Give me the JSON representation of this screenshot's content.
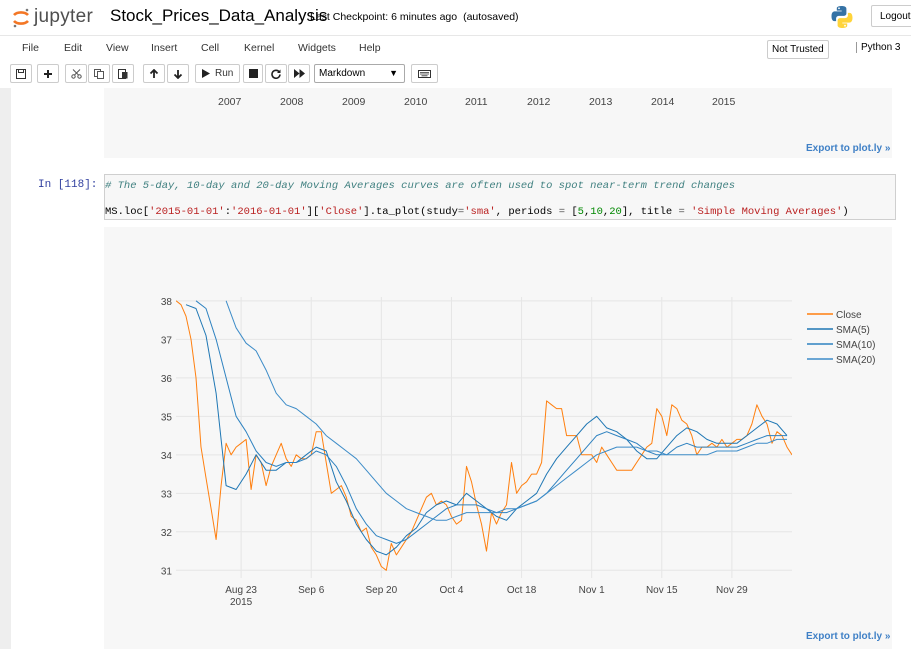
{
  "header": {
    "brand": "jupyter",
    "notebook_name": "Stock_Prices_Data_Analysis",
    "checkpoint": "Last Checkpoint: 6 minutes ago",
    "autosave": "(autosaved)",
    "logout": "Logout"
  },
  "menu": [
    "File",
    "Edit",
    "View",
    "Insert",
    "Cell",
    "Kernel",
    "Widgets",
    "Help"
  ],
  "trusted": "Not Trusted",
  "kernel": "Python 3",
  "toolbar": {
    "run_label": "Run",
    "cell_type": "Markdown"
  },
  "prev_output": {
    "years": [
      "2007",
      "2008",
      "2009",
      "2010",
      "2011",
      "2012",
      "2013",
      "2014",
      "2015"
    ],
    "export": "Export to plot.ly »"
  },
  "cell": {
    "prompt": "In [118]:",
    "comment": "# The 5-day, 10-day and 20-day Moving Averages curves are often used to spot near-term trend changes",
    "code": {
      "a": "MS.loc[",
      "s1": "'2015-01-01'",
      "b": ":",
      "s2": "'2016-01-01'",
      "c": "][",
      "s3": "'Close'",
      "d": "].ta_plot(study",
      "e": "=",
      "s4": "'sma'",
      "f": ", periods ",
      "g": "=",
      "h": " [",
      "n1": "5",
      "i": ",",
      "n2": "10",
      "j": ",",
      "n3": "20",
      "k": "], title ",
      "l": "=",
      "m": " ",
      "s5": "'Simple Moving Averages'",
      "z": ")"
    },
    "export": "Export to plot.ly »"
  },
  "chart_data": {
    "type": "line",
    "title": "",
    "xlabel": "",
    "ylabel": "",
    "ylim": [
      30.8,
      38.1
    ],
    "y_ticks": [
      "38",
      "37",
      "36",
      "35",
      "34",
      "33",
      "32",
      "31"
    ],
    "x_ticks": [
      "Aug 23\n2015",
      "Sep 6",
      "Sep 20",
      "Oct 4",
      "Oct 18",
      "Nov 1",
      "Nov 15",
      "Nov 29"
    ],
    "x_tick_days": [
      13,
      27,
      41,
      55,
      69,
      83,
      97,
      111
    ],
    "x_range_days": [
      0,
      123
    ],
    "legend_position": "top-right",
    "colors": {
      "Close": "#ff7f0e",
      "SMA(5)": "#1f77b4",
      "SMA(10)": "#2e82c0",
      "SMA(20)": "#3d8cc8"
    },
    "series": [
      {
        "name": "Close",
        "x": [
          0,
          1,
          2,
          3,
          4,
          5,
          6,
          7,
          8,
          9,
          10,
          11,
          12,
          13,
          14,
          15,
          16,
          17,
          18,
          19,
          20,
          21,
          22,
          23,
          24,
          25,
          26,
          27,
          28,
          29,
          30,
          31,
          32,
          33,
          34,
          35,
          36,
          37,
          38,
          39,
          40,
          41,
          42,
          43,
          44,
          45,
          46,
          47,
          48,
          49,
          50,
          51,
          52,
          53,
          54,
          55,
          56,
          57,
          58,
          59,
          60,
          61,
          62,
          63,
          64,
          65,
          66,
          67,
          68,
          69,
          70,
          71,
          72,
          73,
          74,
          75,
          76,
          77,
          78,
          79,
          80,
          81,
          82,
          83,
          84,
          85,
          86,
          87,
          88,
          89,
          90,
          91,
          92,
          93,
          94,
          95,
          96,
          97,
          98,
          99,
          100,
          101,
          102,
          103,
          104,
          105,
          106,
          107,
          108,
          109,
          110,
          111,
          112,
          113,
          114,
          115,
          116,
          117,
          118,
          119,
          120,
          121,
          122,
          123
        ],
        "y": [
          38.0,
          37.9,
          37.6,
          37.0,
          36.0,
          34.2,
          33.4,
          32.6,
          31.8,
          33.2,
          34.3,
          34.0,
          34.2,
          34.3,
          34.4,
          33.1,
          34.0,
          33.8,
          33.2,
          33.7,
          34.0,
          34.3,
          33.9,
          33.7,
          34.0,
          33.9,
          33.9,
          34.0,
          34.6,
          34.6,
          33.8,
          33.0,
          33.1,
          33.2,
          32.9,
          32.4,
          32.3,
          32.0,
          32.1,
          31.6,
          31.4,
          31.1,
          31.0,
          31.7,
          31.4,
          31.6,
          31.8,
          32.0,
          32.3,
          32.6,
          32.9,
          33.0,
          32.7,
          32.8,
          32.7,
          32.4,
          32.2,
          32.3,
          33.7,
          33.3,
          32.7,
          32.2,
          31.5,
          32.5,
          32.2,
          32.5,
          32.7,
          33.8,
          33.0,
          33.2,
          33.3,
          33.5,
          33.5,
          33.8,
          35.4,
          35.3,
          35.2,
          35.2,
          34.5,
          34.5,
          34.5,
          34.0,
          34.0,
          34.0,
          33.8,
          34.2,
          34.0,
          33.8,
          33.6,
          33.6,
          33.6,
          33.6,
          33.8,
          34.0,
          34.2,
          34.3,
          35.2,
          35.0,
          34.5,
          35.3,
          35.2,
          34.9,
          34.8,
          34.5,
          34.0,
          34.2,
          34.2,
          34.3,
          34.2,
          34.4,
          34.2,
          34.3,
          34.4,
          34.4,
          34.5,
          34.8,
          35.3,
          35.0,
          34.8,
          34.3,
          34.6,
          34.5,
          34.2,
          34.0
        ]
      },
      {
        "name": "SMA(5)",
        "x": [
          2,
          4,
          6,
          8,
          10,
          12,
          14,
          16,
          18,
          20,
          22,
          24,
          26,
          28,
          30,
          32,
          34,
          36,
          38,
          40,
          42,
          44,
          46,
          48,
          50,
          52,
          54,
          56,
          58,
          60,
          62,
          64,
          66,
          68,
          70,
          72,
          74,
          76,
          78,
          80,
          82,
          84,
          86,
          88,
          90,
          92,
          94,
          96,
          98,
          100,
          102,
          104,
          106,
          108,
          110,
          112,
          114,
          116,
          118,
          120,
          122
        ],
        "y": [
          37.9,
          37.8,
          37.1,
          35.6,
          33.2,
          33.1,
          33.5,
          34.0,
          33.6,
          33.6,
          33.8,
          33.8,
          34.0,
          34.2,
          34.1,
          33.3,
          32.8,
          32.2,
          31.8,
          31.5,
          31.4,
          31.6,
          31.9,
          32.1,
          32.5,
          32.7,
          32.8,
          32.7,
          33.0,
          32.8,
          32.6,
          32.4,
          32.3,
          32.6,
          32.8,
          33.0,
          33.5,
          33.9,
          34.2,
          34.5,
          34.8,
          35.0,
          34.7,
          34.6,
          34.4,
          34.1,
          33.9,
          33.9,
          34.2,
          34.5,
          34.7,
          34.6,
          34.4,
          34.3,
          34.3,
          34.3,
          34.5,
          34.7,
          34.9,
          34.8,
          34.5
        ]
      },
      {
        "name": "SMA(10)",
        "x": [
          4,
          6,
          8,
          10,
          12,
          14,
          16,
          18,
          20,
          22,
          24,
          26,
          28,
          30,
          32,
          34,
          36,
          38,
          40,
          42,
          44,
          46,
          48,
          50,
          52,
          54,
          56,
          58,
          60,
          62,
          64,
          66,
          68,
          70,
          72,
          74,
          76,
          78,
          80,
          82,
          84,
          86,
          88,
          90,
          92,
          94,
          96,
          98,
          100,
          102,
          104,
          106,
          108,
          110,
          112,
          114,
          116,
          118,
          120,
          122
        ],
        "y": [
          38.0,
          37.8,
          37.0,
          36.0,
          35.0,
          34.6,
          34.1,
          33.8,
          33.7,
          33.8,
          33.8,
          33.9,
          34.1,
          34.0,
          33.7,
          33.2,
          32.6,
          32.2,
          31.9,
          31.8,
          31.7,
          31.8,
          32.0,
          32.2,
          32.4,
          32.6,
          32.7,
          32.7,
          32.7,
          32.6,
          32.5,
          32.5,
          32.6,
          32.7,
          32.8,
          33.0,
          33.3,
          33.6,
          33.9,
          34.2,
          34.5,
          34.6,
          34.5,
          34.4,
          34.3,
          34.1,
          34.0,
          34.0,
          34.2,
          34.3,
          34.2,
          34.2,
          34.2,
          34.2,
          34.2,
          34.3,
          34.4,
          34.5,
          34.5,
          34.5
        ]
      },
      {
        "name": "SMA(20)",
        "x": [
          10,
          12,
          14,
          16,
          18,
          20,
          22,
          24,
          26,
          28,
          30,
          32,
          34,
          36,
          38,
          40,
          42,
          44,
          46,
          48,
          50,
          52,
          54,
          56,
          58,
          60,
          62,
          64,
          66,
          68,
          70,
          72,
          74,
          76,
          78,
          80,
          82,
          84,
          86,
          88,
          90,
          92,
          94,
          96,
          98,
          100,
          102,
          104,
          106,
          108,
          110,
          112,
          114,
          116,
          118,
          120,
          122
        ],
        "y": [
          38.0,
          37.3,
          36.9,
          36.7,
          36.2,
          35.6,
          35.3,
          35.2,
          35.0,
          34.8,
          34.5,
          34.3,
          34.1,
          33.9,
          33.6,
          33.3,
          33.0,
          32.8,
          32.6,
          32.5,
          32.4,
          32.3,
          32.3,
          32.4,
          32.5,
          32.5,
          32.5,
          32.5,
          32.6,
          32.6,
          32.7,
          32.8,
          33.0,
          33.2,
          33.4,
          33.6,
          33.8,
          34.0,
          34.1,
          34.2,
          34.2,
          34.2,
          34.1,
          34.1,
          34.0,
          34.0,
          34.0,
          34.0,
          34.0,
          34.1,
          34.1,
          34.1,
          34.2,
          34.3,
          34.3,
          34.4,
          34.4
        ]
      }
    ]
  }
}
